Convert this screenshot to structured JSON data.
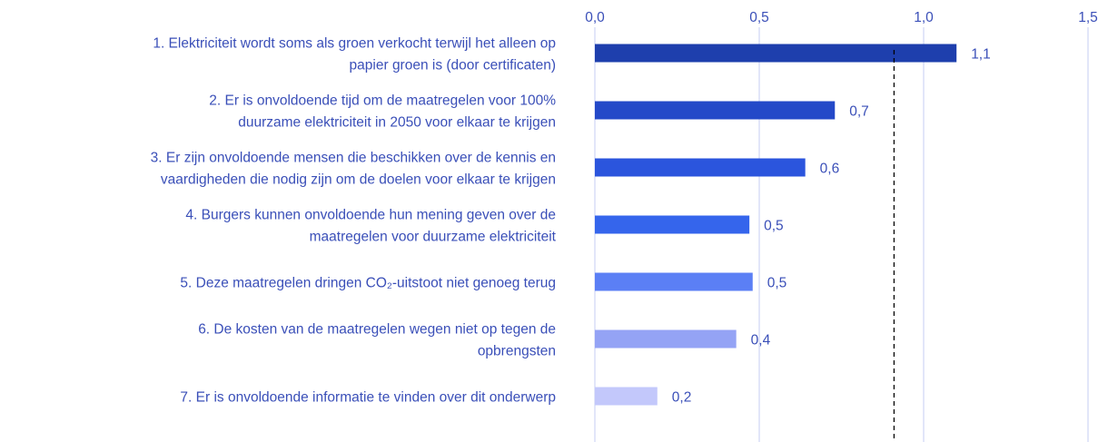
{
  "chart_data": {
    "type": "hbar",
    "categories": [
      [
        "1. Elektriciteit wordt soms als groen verkocht terwijl het alleen op",
        "papier groen is (door certificaten)"
      ],
      [
        "2. Er is onvoldoende tijd om de maatregelen voor 100%",
        "duurzame elektriciteit in 2050 voor elkaar te krijgen"
      ],
      [
        "3. Er zijn onvoldoende mensen die beschikken over de kennis en",
        "vaardigheden die nodig zijn om de doelen voor elkaar te krijgen"
      ],
      [
        "4. Burgers kunnen onvoldoende hun mening geven over de",
        "maatregelen voor duurzame elektriciteit"
      ],
      [
        "5. Deze maatregelen dringen CO₂-uitstoot niet genoeg terug"
      ],
      [
        "6. De kosten van de maatregelen wegen niet op tegen de",
        "opbrengsten"
      ],
      [
        "7. Er is onvoldoende informatie te vinden over dit onderwerp"
      ]
    ],
    "values": [
      1.1,
      0.73,
      0.64,
      0.47,
      0.48,
      0.43,
      0.19
    ],
    "value_labels": [
      "1,1",
      "0,7",
      "0,6",
      "0,5",
      "0,5",
      "0,4",
      "0,2"
    ],
    "colors": [
      "#1e3fad",
      "#2449c8",
      "#2b55dd",
      "#3565ec",
      "#5b7ff5",
      "#94a3f5",
      "#c3c8fb"
    ],
    "xlim": [
      0,
      1.5
    ],
    "xticks": [
      {
        "value": 0,
        "label": "0,0"
      },
      {
        "value": 0.5,
        "label": "0,5"
      },
      {
        "value": 1,
        "label": "1,0"
      },
      {
        "value": 1.5,
        "label": "1,5"
      }
    ],
    "grid": true,
    "reference_line": {
      "value": 0.91,
      "style": "dashed"
    }
  }
}
